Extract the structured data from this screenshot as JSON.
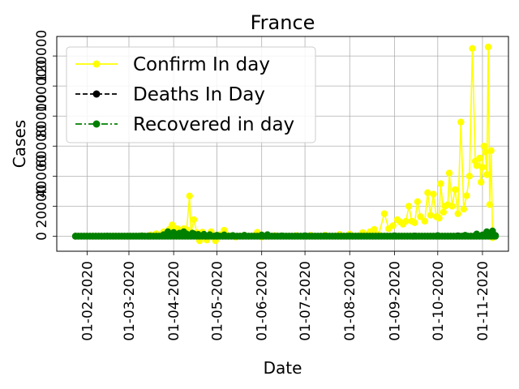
{
  "chart_data": {
    "type": "line",
    "title": "France",
    "xlabel": "Date",
    "ylabel": "Cases",
    "x_tick_labels": [
      "01-02-2020",
      "01-03-2020",
      "01-04-2020",
      "01-05-2020",
      "01-06-2020",
      "01-07-2020",
      "01-08-2020",
      "01-09-2020",
      "01-10-2020",
      "01-11-2020"
    ],
    "y_tick_labels": [
      "0",
      "20000",
      "40000",
      "60000",
      "80000",
      "100000",
      "120000"
    ],
    "y_ticks": [
      0,
      20000,
      40000,
      60000,
      80000,
      100000,
      120000
    ],
    "ylim": [
      -10000,
      133000
    ],
    "xlim": [
      "2020-01-11",
      "2020-11-19"
    ],
    "grid": true,
    "legend_position": "top-left",
    "series": [
      {
        "name": "Confirm In day",
        "color": "#ffff00",
        "linestyle": "solid",
        "marker": "circle",
        "points": [
          [
            "2020-01-24",
            0
          ],
          [
            "2020-02-05",
            0
          ],
          [
            "2020-02-20",
            10
          ],
          [
            "2020-03-01",
            40
          ],
          [
            "2020-03-10",
            300
          ],
          [
            "2020-03-16",
            900
          ],
          [
            "2020-03-20",
            1600
          ],
          [
            "2020-03-25",
            2900
          ],
          [
            "2020-03-29",
            4600
          ],
          [
            "2020-03-31",
            7500
          ],
          [
            "2020-04-02",
            5200
          ],
          [
            "2020-04-04",
            4800
          ],
          [
            "2020-04-06",
            3000
          ],
          [
            "2020-04-08",
            5000
          ],
          [
            "2020-04-10",
            4300
          ],
          [
            "2020-04-12",
            26800
          ],
          [
            "2020-04-13",
            2700
          ],
          [
            "2020-04-15",
            11000
          ],
          [
            "2020-04-17",
            2400
          ],
          [
            "2020-04-19",
            -3000
          ],
          [
            "2020-04-21",
            2700
          ],
          [
            "2020-04-24",
            -2500
          ],
          [
            "2020-04-27",
            3000
          ],
          [
            "2020-04-30",
            -3000
          ],
          [
            "2020-05-03",
            1000
          ],
          [
            "2020-05-06",
            4000
          ],
          [
            "2020-05-09",
            500
          ],
          [
            "2020-05-14",
            -500
          ],
          [
            "2020-05-20",
            600
          ],
          [
            "2020-05-27",
            500
          ],
          [
            "2020-05-29",
            2600
          ],
          [
            "2020-06-01",
            -500
          ],
          [
            "2020-06-10",
            400
          ],
          [
            "2020-06-25",
            500
          ],
          [
            "2020-07-05",
            600
          ],
          [
            "2020-07-15",
            700
          ],
          [
            "2020-07-25",
            1200
          ],
          [
            "2020-08-01",
            1400
          ],
          [
            "2020-08-10",
            2400
          ],
          [
            "2020-08-15",
            3000
          ],
          [
            "2020-08-18",
            4500
          ],
          [
            "2020-08-21",
            1000
          ],
          [
            "2020-08-25",
            15000
          ],
          [
            "2020-08-28",
            5000
          ],
          [
            "2020-08-31",
            7000
          ],
          [
            "2020-09-03",
            11000
          ],
          [
            "2020-09-05",
            9500
          ],
          [
            "2020-09-07",
            8000
          ],
          [
            "2020-09-09",
            10000
          ],
          [
            "2020-09-11",
            20000
          ],
          [
            "2020-09-13",
            10000
          ],
          [
            "2020-09-15",
            9000
          ],
          [
            "2020-09-17",
            23000
          ],
          [
            "2020-09-19",
            13000
          ],
          [
            "2020-09-22",
            10000
          ],
          [
            "2020-09-24",
            29000
          ],
          [
            "2020-09-26",
            14000
          ],
          [
            "2020-09-28",
            28000
          ],
          [
            "2020-09-30",
            13000
          ],
          [
            "2020-10-02",
            12000
          ],
          [
            "2020-10-03",
            35000
          ],
          [
            "2020-10-05",
            16000
          ],
          [
            "2020-10-06",
            20000
          ],
          [
            "2020-10-08",
            21000
          ],
          [
            "2020-10-09",
            42000
          ],
          [
            "2020-10-11",
            20000
          ],
          [
            "2020-10-13",
            31000
          ],
          [
            "2020-10-15",
            15000
          ],
          [
            "2020-10-17",
            76000
          ],
          [
            "2020-10-19",
            18000
          ],
          [
            "2020-10-21",
            27000
          ],
          [
            "2020-10-23",
            40000
          ],
          [
            "2020-10-25",
            125000
          ],
          [
            "2020-10-27",
            50000
          ],
          [
            "2020-10-28",
            47000
          ],
          [
            "2020-10-30",
            52000
          ],
          [
            "2020-10-31",
            36000
          ],
          [
            "2020-11-01",
            46000
          ],
          [
            "2020-11-02",
            60000
          ],
          [
            "2020-11-03",
            56000
          ],
          [
            "2020-11-04",
            41000
          ],
          [
            "2020-11-05",
            126000
          ],
          [
            "2020-11-06",
            21000
          ],
          [
            "2020-11-07",
            57000
          ],
          [
            "2020-11-08",
            -1000
          ],
          [
            "2020-11-09",
            0
          ],
          [
            "2020-11-10",
            0
          ]
        ]
      },
      {
        "name": "Deaths In Day",
        "color": "#000000",
        "linestyle": "dashed",
        "marker": "circle",
        "points": [
          [
            "2020-01-24",
            0
          ],
          [
            "2020-03-15",
            30
          ],
          [
            "2020-04-01",
            500
          ],
          [
            "2020-04-15",
            1400
          ],
          [
            "2020-05-01",
            200
          ],
          [
            "2020-06-01",
            50
          ],
          [
            "2020-08-01",
            10
          ],
          [
            "2020-09-15",
            50
          ],
          [
            "2020-10-15",
            200
          ],
          [
            "2020-11-03",
            800
          ],
          [
            "2020-11-10",
            400
          ]
        ]
      },
      {
        "name": "Recovered in day",
        "color": "#008000",
        "linestyle": "dashdot",
        "marker": "circle",
        "points": [
          [
            "2020-01-24",
            0
          ],
          [
            "2020-02-15",
            50
          ],
          [
            "2020-03-10",
            200
          ],
          [
            "2020-03-25",
            1000
          ],
          [
            "2020-03-28",
            3000
          ],
          [
            "2020-04-01",
            2500
          ],
          [
            "2020-04-05",
            2000
          ],
          [
            "2020-04-08",
            3000
          ],
          [
            "2020-04-10",
            1500
          ],
          [
            "2020-04-14",
            2000
          ],
          [
            "2020-04-18",
            1200
          ],
          [
            "2020-04-22",
            1300
          ],
          [
            "2020-04-26",
            1000
          ],
          [
            "2020-05-01",
            600
          ],
          [
            "2020-05-06",
            900
          ],
          [
            "2020-05-12",
            500
          ],
          [
            "2020-05-20",
            600
          ],
          [
            "2020-06-01",
            800
          ],
          [
            "2020-06-05",
            1000
          ],
          [
            "2020-06-15",
            200
          ],
          [
            "2020-07-01",
            300
          ],
          [
            "2020-07-15",
            100
          ],
          [
            "2020-08-01",
            200
          ],
          [
            "2020-09-01",
            300
          ],
          [
            "2020-10-01",
            400
          ],
          [
            "2020-10-20",
            600
          ],
          [
            "2020-10-28",
            1500
          ],
          [
            "2020-11-01",
            900
          ],
          [
            "2020-11-04",
            3000
          ],
          [
            "2020-11-06",
            1200
          ],
          [
            "2020-11-08",
            3500
          ],
          [
            "2020-11-09",
            1000
          ],
          [
            "2020-11-10",
            0
          ]
        ]
      }
    ]
  }
}
